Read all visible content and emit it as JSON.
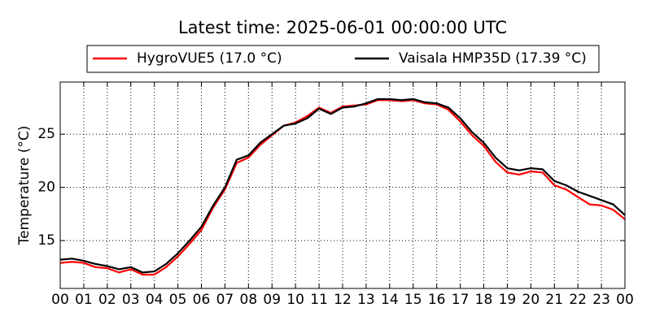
{
  "chart_data": {
    "type": "line",
    "title": "Latest time: 2025-06-01 00:00:00 UTC",
    "ylabel": "Temperature (°C)",
    "x": [
      0,
      0.5,
      1,
      1.5,
      2,
      2.5,
      3,
      3.5,
      4,
      4.5,
      5,
      5.5,
      6,
      6.5,
      7,
      7.5,
      8,
      8.5,
      9,
      9.5,
      10,
      10.5,
      11,
      11.5,
      12,
      12.5,
      13,
      13.5,
      14,
      14.5,
      15,
      15.5,
      16,
      16.5,
      17,
      17.5,
      18,
      18.5,
      19,
      19.5,
      20,
      20.5,
      21,
      21.5,
      22,
      22.5,
      23,
      23.5,
      24
    ],
    "series": [
      {
        "name": "HygroVUE5 (17.0 °C)",
        "color": "#ff0000",
        "values": [
          12.9,
          13.0,
          12.9,
          12.5,
          12.4,
          12.0,
          12.3,
          11.8,
          11.8,
          12.5,
          13.5,
          14.7,
          16.0,
          18.1,
          19.8,
          22.3,
          22.8,
          24.0,
          24.9,
          25.8,
          26.1,
          26.7,
          27.5,
          27.0,
          27.6,
          27.7,
          27.8,
          28.2,
          28.2,
          28.1,
          28.2,
          27.9,
          27.8,
          27.3,
          26.2,
          24.9,
          23.9,
          22.4,
          21.4,
          21.2,
          21.5,
          21.4,
          20.2,
          19.8,
          19.1,
          18.4,
          18.3,
          17.9,
          17.0
        ]
      },
      {
        "name": "Vaisala HMP35D (17.39 °C)",
        "color": "#000000",
        "values": [
          13.2,
          13.3,
          13.1,
          12.8,
          12.6,
          12.3,
          12.5,
          12.0,
          12.1,
          12.8,
          13.8,
          15.0,
          16.3,
          18.3,
          20.0,
          22.6,
          23.0,
          24.2,
          25.0,
          25.8,
          26.0,
          26.5,
          27.4,
          26.9,
          27.5,
          27.6,
          27.9,
          28.3,
          28.3,
          28.2,
          28.3,
          28.0,
          27.9,
          27.5,
          26.5,
          25.2,
          24.2,
          22.8,
          21.8,
          21.6,
          21.8,
          21.7,
          20.6,
          20.2,
          19.6,
          19.2,
          18.8,
          18.4,
          17.39
        ]
      }
    ],
    "xlim": [
      0,
      24
    ],
    "xticks": [
      {
        "value": 0,
        "label": "00"
      },
      {
        "value": 1,
        "label": "01"
      },
      {
        "value": 2,
        "label": "02"
      },
      {
        "value": 3,
        "label": "03"
      },
      {
        "value": 4,
        "label": "04"
      },
      {
        "value": 5,
        "label": "05"
      },
      {
        "value": 6,
        "label": "06"
      },
      {
        "value": 7,
        "label": "07"
      },
      {
        "value": 8,
        "label": "08"
      },
      {
        "value": 9,
        "label": "09"
      },
      {
        "value": 10,
        "label": "10"
      },
      {
        "value": 11,
        "label": "11"
      },
      {
        "value": 12,
        "label": "12"
      },
      {
        "value": 13,
        "label": "13"
      },
      {
        "value": 14,
        "label": "14"
      },
      {
        "value": 15,
        "label": "15"
      },
      {
        "value": 16,
        "label": "16"
      },
      {
        "value": 17,
        "label": "17"
      },
      {
        "value": 18,
        "label": "18"
      },
      {
        "value": 19,
        "label": "19"
      },
      {
        "value": 20,
        "label": "20"
      },
      {
        "value": 21,
        "label": "21"
      },
      {
        "value": 22,
        "label": "22"
      },
      {
        "value": 23,
        "label": "23"
      },
      {
        "value": 24,
        "label": "00"
      }
    ],
    "ylim": [
      10.5,
      29.9
    ],
    "yticks": [
      15,
      20,
      25
    ],
    "grid": true,
    "legend": "top"
  }
}
